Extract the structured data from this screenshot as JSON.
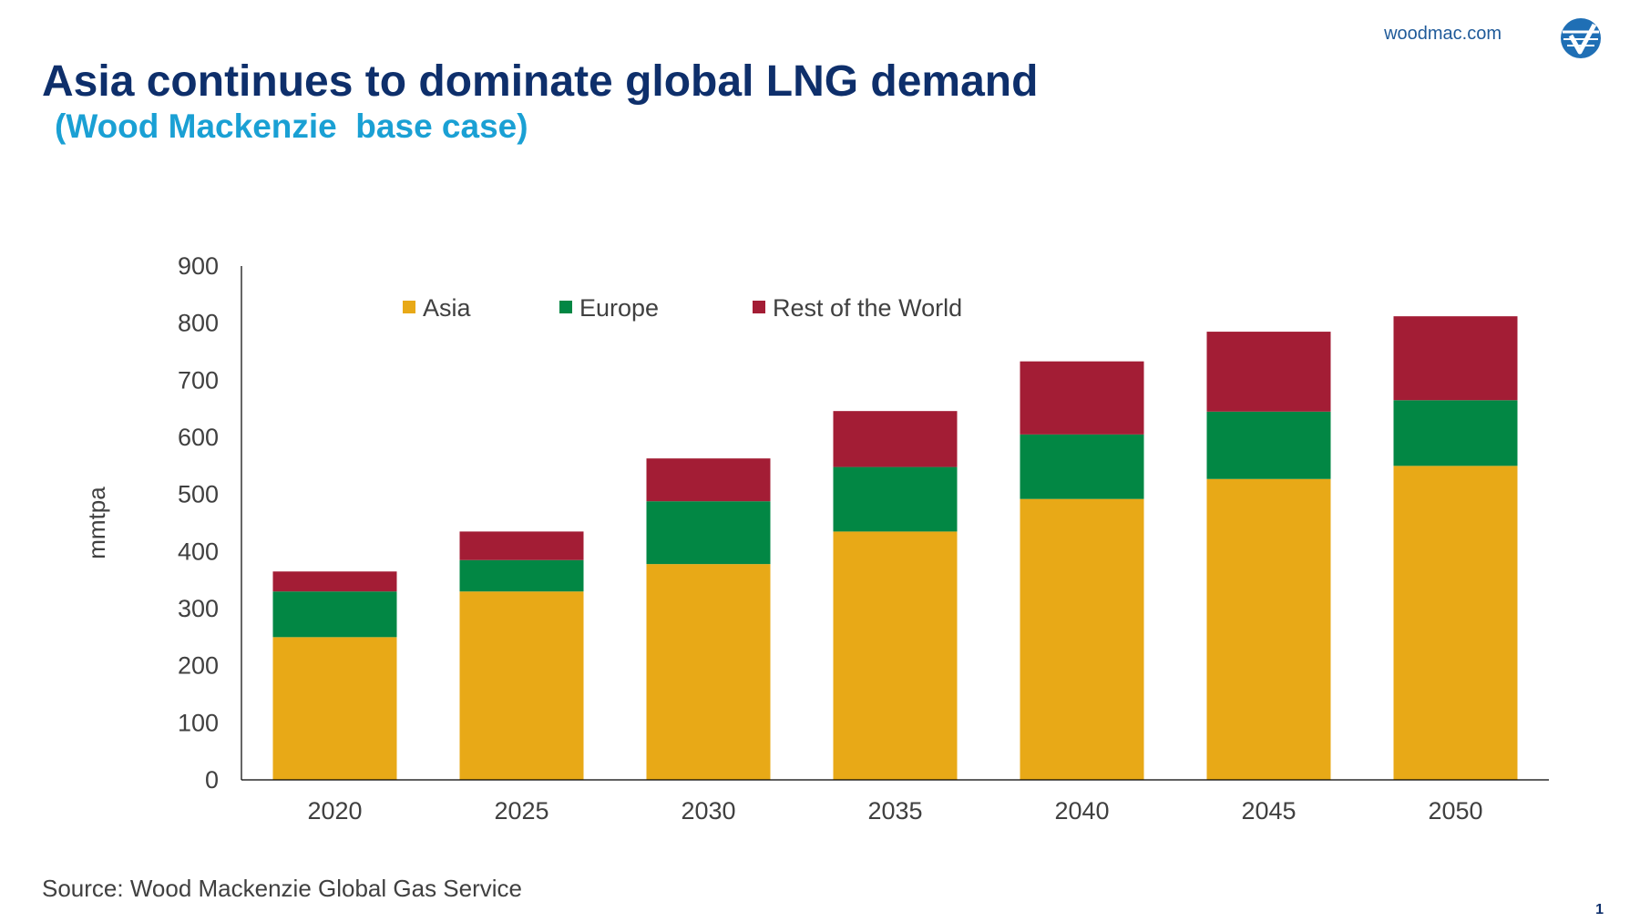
{
  "header": {
    "site": "woodmac.com",
    "title": "Asia continues to dominate global LNG demand",
    "subtitle": "(Wood Mackenzie  base case)"
  },
  "logo": {
    "icon": "woodmac-logo-icon"
  },
  "colors": {
    "asia": "#E8A917",
    "europe": "#028744",
    "rest_of_world": "#A31D35",
    "title": "#0E2F6B",
    "subtitle": "#1AA0D4",
    "axis_text": "#404040"
  },
  "footer": {
    "source": "Source: Wood Mackenzie Global Gas Service",
    "page_number": "1"
  },
  "chart_data": {
    "type": "bar",
    "stacked": true,
    "title": "Asia continues to dominate global LNG demand",
    "subtitle": "(Wood Mackenzie  base case)",
    "xlabel": "",
    "ylabel": "mmtpa",
    "ylim": [
      0,
      900
    ],
    "yticks": [
      0,
      100,
      200,
      300,
      400,
      500,
      600,
      700,
      800,
      900
    ],
    "grid": false,
    "legend_position": "top-left",
    "categories": [
      "2020",
      "2025",
      "2030",
      "2035",
      "2040",
      "2045",
      "2050"
    ],
    "series": [
      {
        "name": "Asia",
        "color": "#E8A917",
        "values": [
          250,
          330,
          378,
          435,
          492,
          527,
          550
        ]
      },
      {
        "name": "Europe",
        "color": "#028744",
        "values": [
          80,
          55,
          110,
          113,
          113,
          118,
          115
        ]
      },
      {
        "name": "Rest of the World",
        "color": "#A31D35",
        "values": [
          35,
          50,
          75,
          98,
          128,
          140,
          147
        ]
      }
    ]
  }
}
